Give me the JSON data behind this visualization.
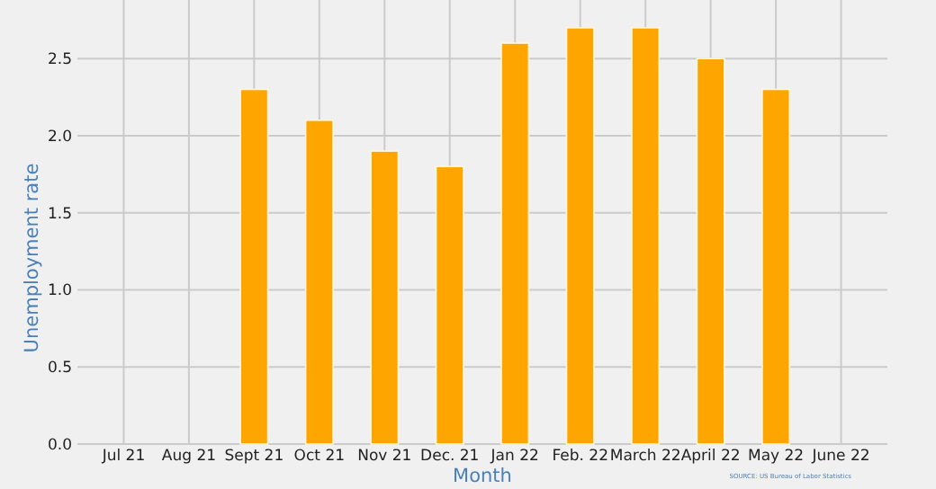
{
  "chart_data": {
    "type": "bar",
    "xlabel": "Month",
    "ylabel": "Unemployment rate",
    "categories": [
      "Jul 21",
      "Aug 21",
      "Sept 21",
      "Oct 21",
      "Nov 21",
      "Dec. 21",
      "Jan 22",
      "Feb. 22",
      "March 22",
      "April 22",
      "May 22",
      "June 22"
    ],
    "values": [
      null,
      null,
      2.3,
      2.1,
      1.9,
      1.8,
      2.6,
      2.7,
      2.7,
      2.5,
      2.3,
      null
    ],
    "color": "#ffa500",
    "ylim": [
      0,
      2.88
    ],
    "yticks": [
      {
        "value": 0,
        "label": "0.0"
      },
      {
        "value": 0.5,
        "label": "0.5"
      },
      {
        "value": 1,
        "label": "1.0"
      },
      {
        "value": 1.5,
        "label": "1.5"
      },
      {
        "value": 2,
        "label": "2.0"
      },
      {
        "value": 2.5,
        "label": "2.5"
      }
    ],
    "grid": true,
    "annotations": [
      "SOURCE: US Bureau of Labor Statistics"
    ]
  }
}
